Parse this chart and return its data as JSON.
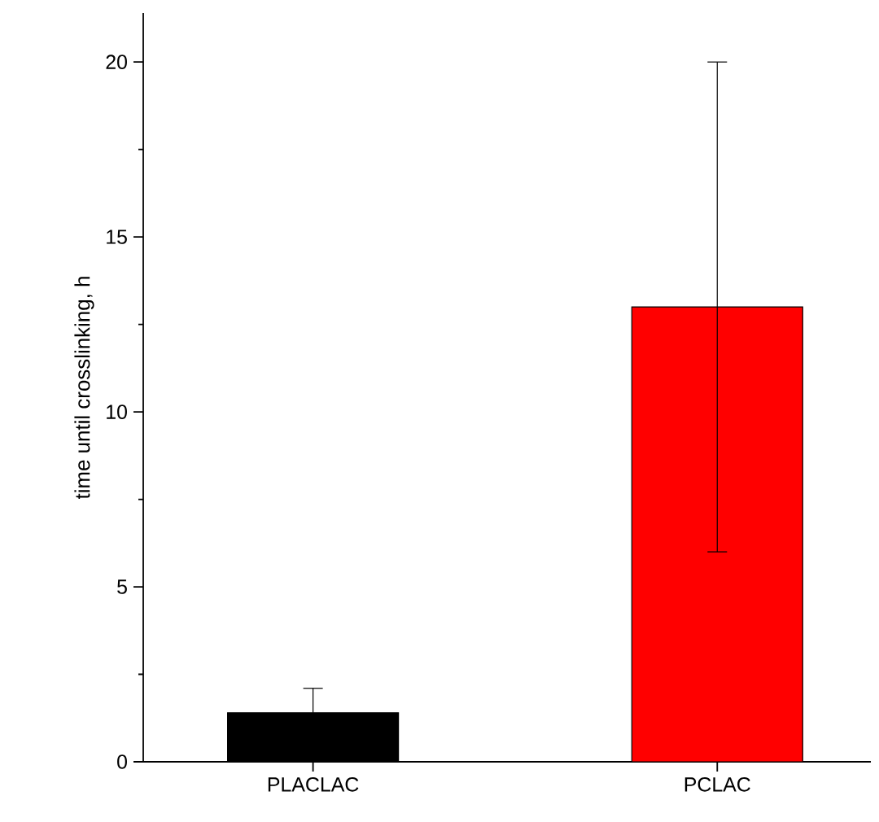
{
  "chart_data": {
    "type": "bar",
    "ylabel": "time until crosslinking, h",
    "categories": [
      "PLACLAC",
      "PCLAC"
    ],
    "values": [
      1.4,
      13
    ],
    "errors": [
      0.7,
      7
    ],
    "colors": [
      "#000000",
      "#ff0000"
    ],
    "ylim": [
      0,
      21.4
    ],
    "yticks": [
      0,
      5,
      10,
      15,
      20
    ],
    "grid": false
  }
}
